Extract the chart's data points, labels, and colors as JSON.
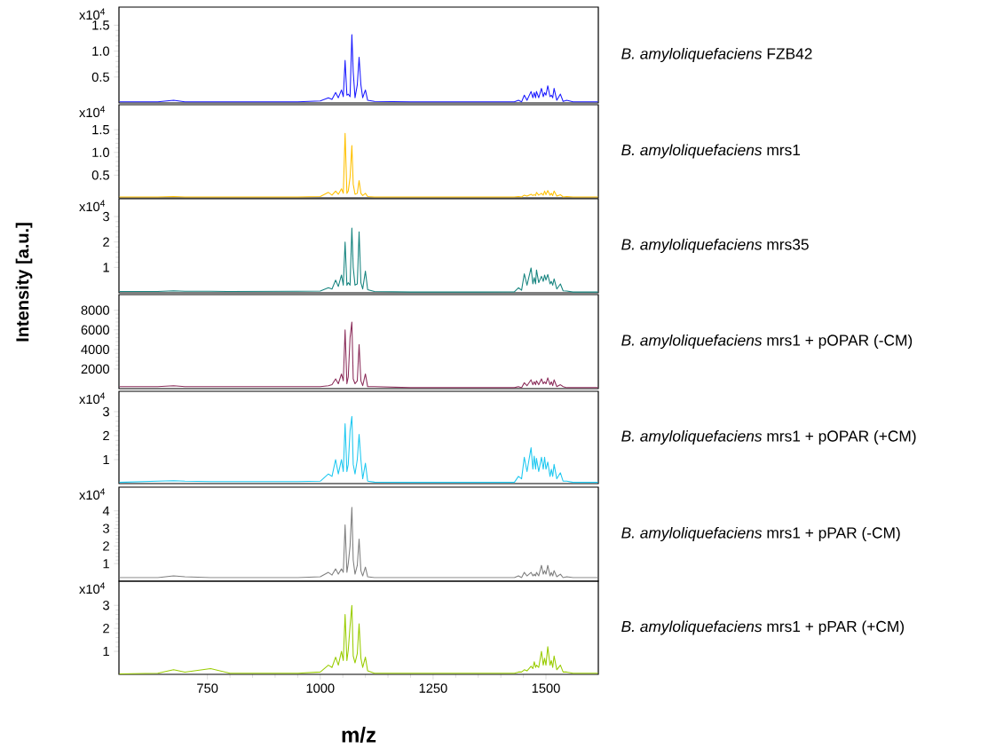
{
  "chart_data": [
    {
      "type": "line",
      "annotations": [
        "x10$^{4}$"
      ],
      "tick_labels": "y",
      "x": [
        555,
        640,
        675,
        700,
        757,
        800,
        950,
        1000,
        1018,
        1026,
        1034,
        1040,
        1047,
        1051,
        1055,
        1059,
        1062,
        1066,
        1070,
        1073,
        1077,
        1082,
        1086,
        1090,
        1094,
        1100,
        1105,
        1120,
        1200,
        1350,
        1430,
        1439,
        1446,
        1452,
        1458,
        1467,
        1471,
        1474,
        1477,
        1479,
        1484,
        1490,
        1494,
        1497,
        1500,
        1504,
        1509,
        1512,
        1515,
        1518,
        1524,
        1532,
        1538,
        1546,
        1560,
        1615
      ],
      "series": [
        {
          "name": "*B. amyloliquefaciens* FZB42",
          "color": "#1a1aff",
          "values": [
            0.02,
            0.02,
            0.05,
            0.02,
            0.02,
            0.02,
            0.02,
            0.04,
            0.1,
            0.07,
            0.2,
            0.1,
            0.25,
            0.12,
            0.82,
            0.15,
            0.17,
            0.12,
            1.32,
            0.6,
            0.1,
            0.35,
            0.88,
            0.35,
            0.1,
            0.25,
            0.05,
            0.03,
            0.02,
            0.02,
            0.02,
            0.05,
            0.02,
            0.15,
            0.05,
            0.22,
            0.1,
            0.2,
            0.1,
            0.22,
            0.1,
            0.28,
            0.12,
            0.2,
            0.15,
            0.33,
            0.12,
            0.15,
            0.1,
            0.28,
            0.05,
            0.17,
            0.03,
            0.05,
            0.02,
            0.02
          ]
        }
      ],
      "xlim": [
        554,
        1616
      ],
      "ylim": [
        0,
        1.85
      ],
      "yticks": [
        0.5,
        {
          "value": 1,
          "label": "1.0"
        },
        1.5
      ]
    },
    {
      "type": "line",
      "annotations": [
        "x10$^{4}$"
      ],
      "tick_labels": "y",
      "x": [
        555,
        640,
        675,
        700,
        757,
        800,
        950,
        1000,
        1018,
        1026,
        1034,
        1040,
        1047,
        1051,
        1055,
        1059,
        1062,
        1066,
        1070,
        1073,
        1077,
        1082,
        1086,
        1090,
        1094,
        1100,
        1105,
        1120,
        1200,
        1350,
        1430,
        1439,
        1446,
        1452,
        1458,
        1467,
        1471,
        1474,
        1477,
        1479,
        1484,
        1490,
        1494,
        1497,
        1500,
        1504,
        1509,
        1512,
        1515,
        1518,
        1524,
        1532,
        1538,
        1546,
        1560,
        1615
      ],
      "series": [
        {
          "name": "*B. amyloliquefaciens* mrs1",
          "color": "#ffc000",
          "values": [
            0.02,
            0.02,
            0.03,
            0.02,
            0.02,
            0.02,
            0.02,
            0.03,
            0.12,
            0.06,
            0.15,
            0.08,
            0.2,
            0.1,
            1.42,
            0.1,
            0.15,
            0.45,
            1.15,
            0.3,
            0.08,
            0.1,
            0.38,
            0.1,
            0.05,
            0.1,
            0.03,
            0.02,
            0.02,
            0.02,
            0.02,
            0.03,
            0.02,
            0.06,
            0.04,
            0.08,
            0.05,
            0.07,
            0.05,
            0.12,
            0.06,
            0.1,
            0.06,
            0.15,
            0.07,
            0.16,
            0.06,
            0.1,
            0.05,
            0.15,
            0.04,
            0.07,
            0.02,
            0.03,
            0.02,
            0.02
          ]
        }
      ],
      "xlim": [
        554,
        1616
      ],
      "ylim": [
        0,
        2.05
      ],
      "yticks": [
        0.5,
        {
          "value": 1,
          "label": "1.0"
        },
        1.5
      ]
    },
    {
      "type": "line",
      "annotations": [
        "x10$^{4}$"
      ],
      "tick_labels": "y",
      "x": [
        555,
        640,
        675,
        700,
        757,
        800,
        950,
        1000,
        1018,
        1026,
        1034,
        1040,
        1047,
        1051,
        1055,
        1059,
        1062,
        1066,
        1070,
        1073,
        1077,
        1082,
        1086,
        1090,
        1094,
        1100,
        1105,
        1120,
        1200,
        1350,
        1430,
        1439,
        1446,
        1452,
        1458,
        1467,
        1471,
        1474,
        1477,
        1479,
        1484,
        1490,
        1494,
        1497,
        1500,
        1504,
        1509,
        1512,
        1515,
        1518,
        1524,
        1532,
        1538,
        1546,
        1560,
        1615
      ],
      "series": [
        {
          "name": "*B. amyloliquefaciens* mrs35",
          "color": "#16847f",
          "values": [
            0.05,
            0.05,
            0.08,
            0.06,
            0.06,
            0.05,
            0.06,
            0.07,
            0.2,
            0.15,
            0.5,
            0.25,
            0.7,
            0.3,
            2.0,
            0.3,
            0.4,
            0.3,
            2.55,
            1.0,
            0.3,
            0.35,
            2.4,
            0.4,
            0.15,
            0.85,
            0.12,
            0.05,
            0.03,
            0.03,
            0.04,
            0.2,
            0.1,
            0.75,
            0.3,
            0.98,
            0.35,
            0.6,
            0.35,
            0.9,
            0.4,
            0.65,
            0.45,
            0.7,
            0.5,
            0.72,
            0.35,
            0.45,
            0.3,
            0.55,
            0.15,
            0.35,
            0.08,
            0.07,
            0.03,
            0.03
          ]
        }
      ],
      "xlim": [
        554,
        1616
      ],
      "ylim": [
        0,
        3.7
      ],
      "yticks": [
        1,
        2,
        3
      ]
    },
    {
      "type": "line",
      "ylabel": "Intensity [a.u.]",
      "tick_labels": "y",
      "x": [
        555,
        640,
        675,
        700,
        757,
        800,
        950,
        1000,
        1018,
        1026,
        1034,
        1040,
        1047,
        1051,
        1055,
        1059,
        1062,
        1066,
        1070,
        1073,
        1077,
        1082,
        1086,
        1090,
        1094,
        1100,
        1105,
        1120,
        1200,
        1350,
        1430,
        1439,
        1446,
        1452,
        1458,
        1467,
        1471,
        1474,
        1477,
        1479,
        1484,
        1490,
        1494,
        1497,
        1500,
        1504,
        1509,
        1512,
        1515,
        1518,
        1524,
        1532,
        1538,
        1546,
        1560,
        1615
      ],
      "series": [
        {
          "name": "*B. amyloliquefaciens* mrs1 + pOPAR (-CM)",
          "color": "#8b2d5a",
          "values": [
            200,
            200,
            300,
            200,
            200,
            200,
            200,
            200,
            300,
            400,
            1000,
            500,
            1500,
            800,
            6000,
            500,
            1200,
            5200,
            6800,
            1000,
            500,
            800,
            4500,
            800,
            300,
            1500,
            200,
            200,
            100,
            100,
            100,
            200,
            100,
            600,
            300,
            900,
            400,
            700,
            400,
            800,
            400,
            1000,
            500,
            700,
            500,
            1100,
            400,
            700,
            300,
            900,
            200,
            400,
            200,
            100,
            100,
            100
          ]
        }
      ],
      "xlim": [
        554,
        1616
      ],
      "ylim": [
        0,
        9600
      ],
      "yticks": [
        2000,
        4000,
        6000,
        8000
      ]
    },
    {
      "type": "line",
      "annotations": [
        "x10$^{4}$"
      ],
      "tick_labels": "y",
      "x": [
        555,
        640,
        675,
        700,
        757,
        800,
        950,
        1000,
        1018,
        1026,
        1034,
        1040,
        1047,
        1051,
        1055,
        1059,
        1062,
        1066,
        1070,
        1073,
        1077,
        1082,
        1086,
        1090,
        1094,
        1100,
        1105,
        1120,
        1200,
        1350,
        1430,
        1439,
        1446,
        1452,
        1458,
        1467,
        1471,
        1474,
        1477,
        1479,
        1484,
        1490,
        1494,
        1497,
        1500,
        1504,
        1509,
        1512,
        1515,
        1518,
        1524,
        1532,
        1538,
        1546,
        1560,
        1615
      ],
      "series": [
        {
          "name": "*B. amyloliquefaciens* mrs1 + pOPAR (+CM)",
          "color": "#1ec8f0",
          "values": [
            0.05,
            0.1,
            0.12,
            0.1,
            0.08,
            0.08,
            0.08,
            0.1,
            0.4,
            0.3,
            1.0,
            0.4,
            1.0,
            0.5,
            2.5,
            0.5,
            0.8,
            2.2,
            2.8,
            0.8,
            0.4,
            1.0,
            2.05,
            1.0,
            0.2,
            0.85,
            0.1,
            0.06,
            0.05,
            0.05,
            0.05,
            0.3,
            0.2,
            1.1,
            0.5,
            1.5,
            0.6,
            1.15,
            0.6,
            1.05,
            0.5,
            1.1,
            0.6,
            1.1,
            0.6,
            0.9,
            0.3,
            0.6,
            0.3,
            0.8,
            0.2,
            0.45,
            0.1,
            0.1,
            0.05,
            0.05
          ]
        }
      ],
      "xlim": [
        554,
        1616
      ],
      "ylim": [
        0,
        3.85
      ],
      "yticks": [
        1,
        2,
        3
      ]
    },
    {
      "type": "line",
      "annotations": [
        "x10$^{4}$"
      ],
      "tick_labels": "y",
      "x": [
        555,
        640,
        675,
        700,
        757,
        800,
        950,
        1000,
        1018,
        1026,
        1034,
        1040,
        1047,
        1051,
        1055,
        1059,
        1062,
        1066,
        1070,
        1073,
        1077,
        1082,
        1086,
        1090,
        1094,
        1100,
        1105,
        1120,
        1200,
        1350,
        1430,
        1439,
        1446,
        1452,
        1458,
        1467,
        1471,
        1474,
        1477,
        1479,
        1484,
        1490,
        1494,
        1497,
        1500,
        1504,
        1509,
        1512,
        1515,
        1518,
        1524,
        1532,
        1538,
        1546,
        1560,
        1615
      ],
      "series": [
        {
          "name": "*B. amyloliquefaciens* mrs1 + pPAR (-CM)",
          "color": "#7f7f7f",
          "values": [
            0.2,
            0.2,
            0.3,
            0.25,
            0.2,
            0.2,
            0.2,
            0.25,
            0.5,
            0.35,
            0.7,
            0.4,
            0.7,
            0.5,
            3.2,
            0.5,
            1.0,
            2.0,
            4.2,
            1.2,
            0.4,
            0.9,
            2.4,
            0.6,
            0.3,
            0.8,
            0.25,
            0.2,
            0.2,
            0.2,
            0.2,
            0.3,
            0.2,
            0.5,
            0.3,
            0.5,
            0.3,
            0.4,
            0.3,
            0.5,
            0.3,
            0.9,
            0.4,
            0.6,
            0.4,
            0.9,
            0.3,
            0.5,
            0.3,
            0.6,
            0.25,
            0.4,
            0.2,
            0.25,
            0.2,
            0.2
          ]
        }
      ],
      "xlim": [
        554,
        1616
      ],
      "ylim": [
        0,
        5.35
      ],
      "yticks": [
        1,
        2,
        3,
        4
      ]
    },
    {
      "type": "line",
      "annotations": [
        "x10$^{4}$"
      ],
      "xlabel": "m/z",
      "x": [
        555,
        640,
        675,
        700,
        757,
        800,
        950,
        1000,
        1018,
        1026,
        1034,
        1040,
        1047,
        1051,
        1055,
        1059,
        1062,
        1066,
        1070,
        1073,
        1077,
        1082,
        1086,
        1090,
        1094,
        1100,
        1105,
        1120,
        1200,
        1350,
        1430,
        1439,
        1446,
        1452,
        1458,
        1467,
        1471,
        1474,
        1477,
        1479,
        1484,
        1490,
        1494,
        1497,
        1500,
        1504,
        1509,
        1512,
        1515,
        1518,
        1524,
        1532,
        1538,
        1546,
        1560,
        1615
      ],
      "series": [
        {
          "name": "*B. amyloliquefaciens* mrs1 + pPAR (+CM)",
          "color": "#99cc00",
          "values": [
            0.02,
            0.05,
            0.2,
            0.1,
            0.25,
            0.05,
            0.05,
            0.1,
            0.4,
            0.3,
            0.75,
            0.4,
            1.0,
            0.6,
            2.6,
            0.6,
            1.05,
            2.1,
            3.0,
            0.8,
            0.5,
            0.9,
            2.2,
            0.7,
            0.3,
            0.75,
            0.15,
            0.05,
            0.05,
            0.05,
            0.05,
            0.1,
            0.1,
            0.2,
            0.15,
            0.35,
            0.25,
            0.55,
            0.3,
            0.4,
            0.3,
            1.0,
            0.4,
            0.7,
            0.4,
            1.2,
            0.4,
            0.6,
            0.3,
            0.8,
            0.2,
            0.4,
            0.1,
            0.1,
            0.05,
            0.05
          ]
        }
      ],
      "xlim": [
        554,
        1616
      ],
      "ylim": [
        0,
        4.05
      ],
      "xticks": [
        750,
        1000,
        1250,
        1500
      ],
      "yticks": [
        1,
        2,
        3
      ]
    }
  ]
}
